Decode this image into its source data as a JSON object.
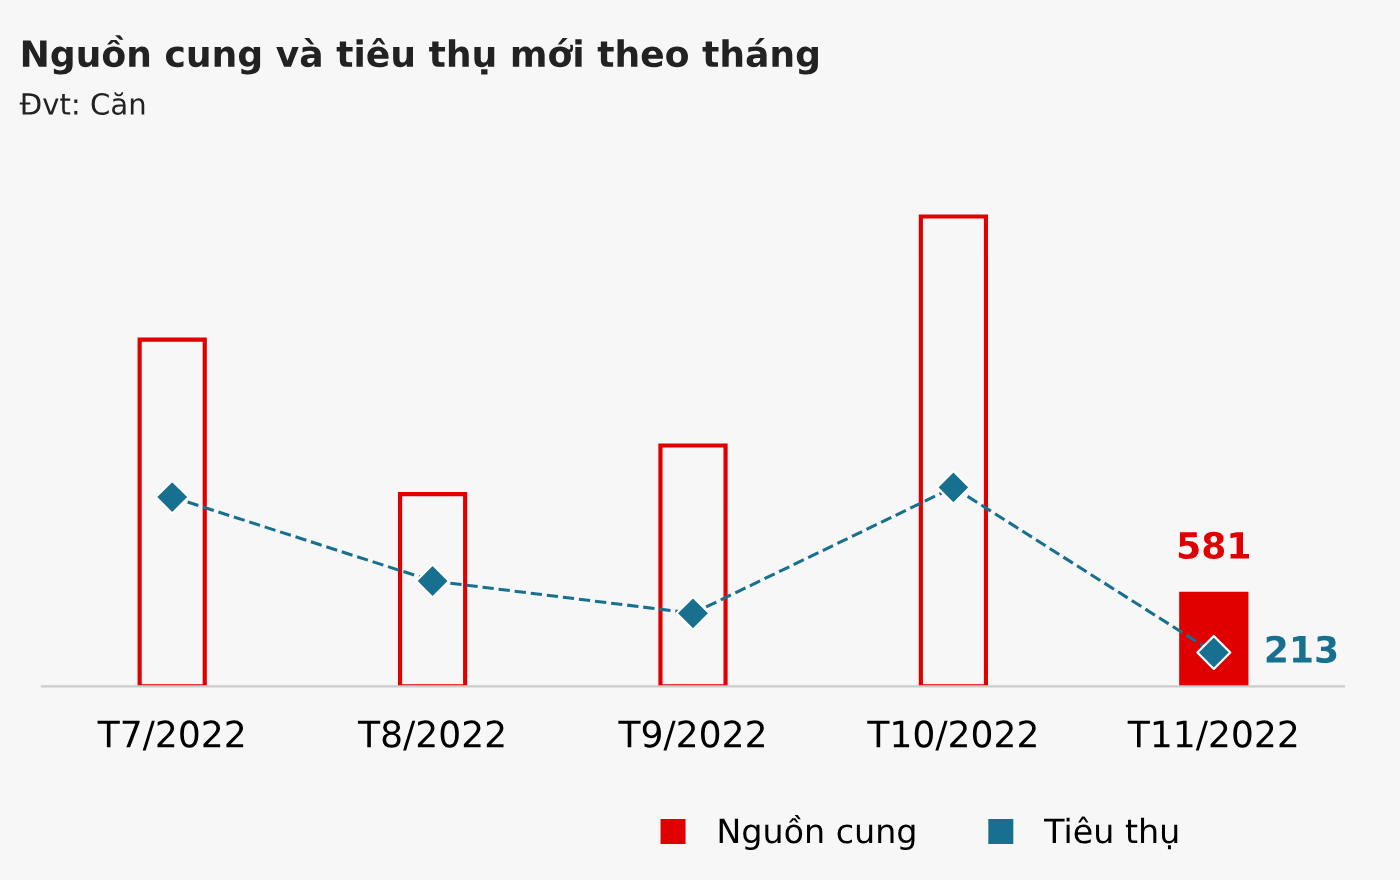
{
  "chart_data": {
    "type": "bar",
    "title": "Nguồn cung và tiêu thụ mới theo tháng",
    "subtitle": "Đvt: Căn",
    "categories": [
      "T7/2022",
      "T8/2022",
      "T9/2022",
      "T10/2022",
      "T11/2022"
    ],
    "series": [
      {
        "name": "Nguồn cung",
        "color": "#e00000",
        "values": [
          2178,
          1207,
          1513,
          2951,
          581
        ],
        "value_labels": [
          null,
          null,
          null,
          null,
          "581"
        ]
      },
      {
        "name": "Tiêu thụ",
        "type": "line",
        "color": "#17708f",
        "values": [
          1189,
          662,
          459,
          1250,
          213
        ],
        "value_labels": [
          null,
          null,
          null,
          null,
          "213"
        ],
        "marker": "diamond",
        "line_style": "dashed"
      }
    ],
    "legend": "bottom",
    "grid": false,
    "tick_labels": "x"
  }
}
